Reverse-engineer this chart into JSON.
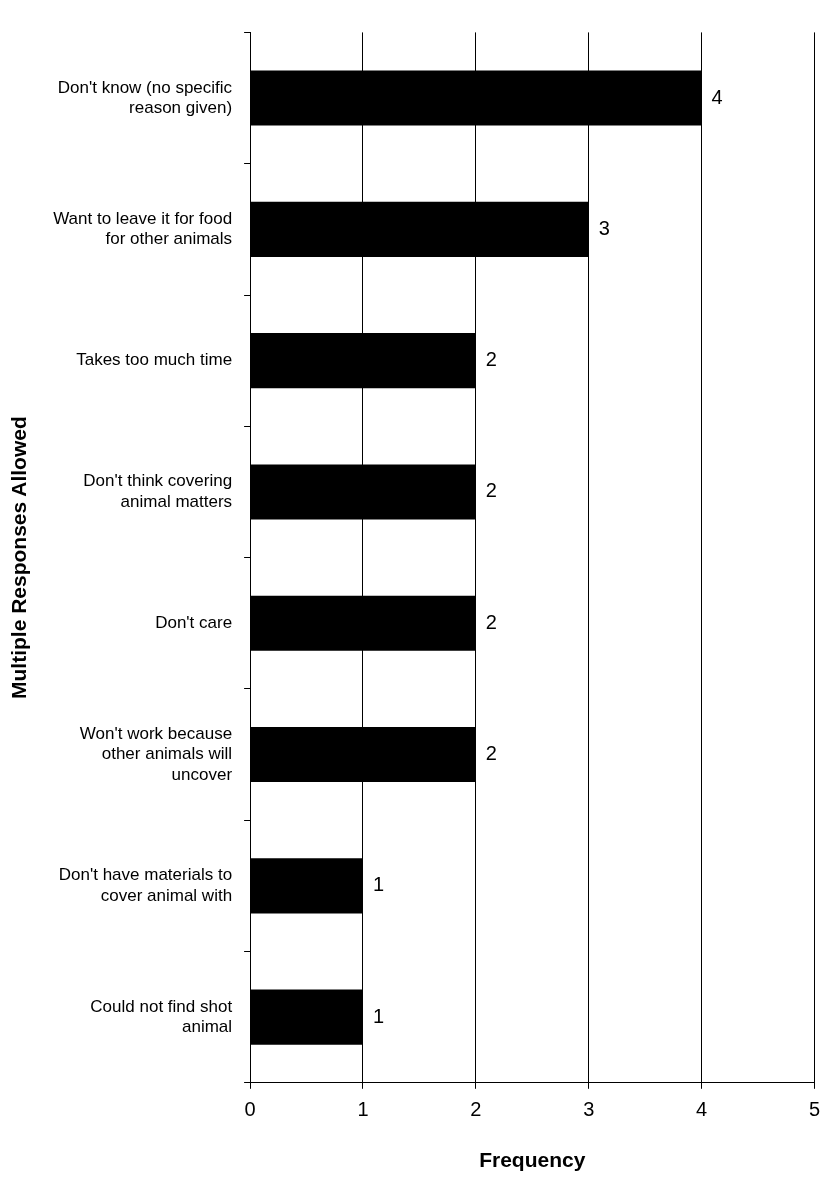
{
  "chart_data": {
    "type": "bar",
    "orientation": "horizontal",
    "xlabel": "Frequency",
    "ylabel": "Multiple Responses Allowed",
    "categories": [
      "Don't know (no specific reason given)",
      "Want to leave it for food for other animals",
      "Takes too much time",
      "Don't think covering animal matters",
      "Don't care",
      "Won't work because other animals will uncover",
      "Don't have materials to cover animal with",
      "Could not find shot animal"
    ],
    "values": [
      4,
      3,
      2,
      2,
      2,
      2,
      1,
      1
    ],
    "color": "#000000",
    "xlim": [
      0,
      5
    ],
    "xticks": [
      0,
      1,
      2,
      3,
      4,
      5
    ],
    "grid": "x",
    "data_labels": true,
    "legend": false
  }
}
